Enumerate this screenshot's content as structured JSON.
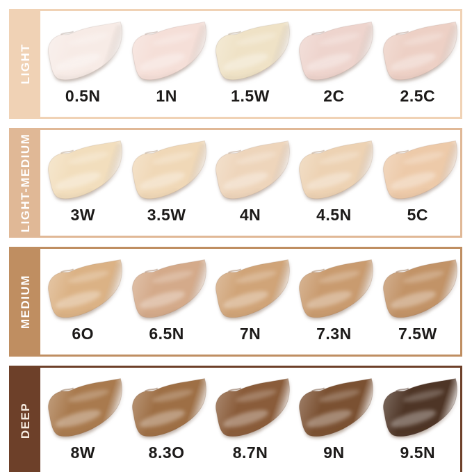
{
  "text_color": "#1c1a19",
  "background_color": "#ffffff",
  "chart_data": {
    "type": "table",
    "description": "Foundation shade swatch chart: 4 depth categories, each with 5 smear swatches labeled by shade code",
    "rows": [
      {
        "category": "LIGHT",
        "category_color": "#f0d2b5",
        "category_text_color": "#ffffff",
        "shades": [
          {
            "name": "0.5N",
            "color": "#f7ebe6"
          },
          {
            "name": "1N",
            "color": "#f5dfd8"
          },
          {
            "name": "1.5W",
            "color": "#efe2c6"
          },
          {
            "name": "2C",
            "color": "#eed4cd"
          },
          {
            "name": "2.5C",
            "color": "#edd0c5"
          }
        ]
      },
      {
        "category": "LIGHT-MEDIUM",
        "category_color": "#e0b896",
        "category_text_color": "#ffffff",
        "shades": [
          {
            "name": "3W",
            "color": "#f2debd"
          },
          {
            "name": "3.5W",
            "color": "#f0d8b7"
          },
          {
            "name": "4N",
            "color": "#eed5bb"
          },
          {
            "name": "4.5N",
            "color": "#edd2b3"
          },
          {
            "name": "5C",
            "color": "#edcaa9"
          }
        ]
      },
      {
        "category": "MEDIUM",
        "category_color": "#bf8e61",
        "category_text_color": "#ffffff",
        "shades": [
          {
            "name": "6O",
            "color": "#dbb285"
          },
          {
            "name": "6.5N",
            "color": "#d4aa8a"
          },
          {
            "name": "7N",
            "color": "#d0a478"
          },
          {
            "name": "7.3N",
            "color": "#c99b6f"
          },
          {
            "name": "7.5W",
            "color": "#c29367"
          }
        ]
      },
      {
        "category": "DEEP",
        "category_color": "#6d4029",
        "category_text_color": "#f6ece1",
        "shades": [
          {
            "name": "8W",
            "color": "#a97a4e"
          },
          {
            "name": "8.3O",
            "color": "#9e6f45"
          },
          {
            "name": "8.7N",
            "color": "#8a5c3a"
          },
          {
            "name": "9N",
            "color": "#7b5132"
          },
          {
            "name": "9.5N",
            "color": "#4e3526"
          }
        ]
      }
    ]
  }
}
